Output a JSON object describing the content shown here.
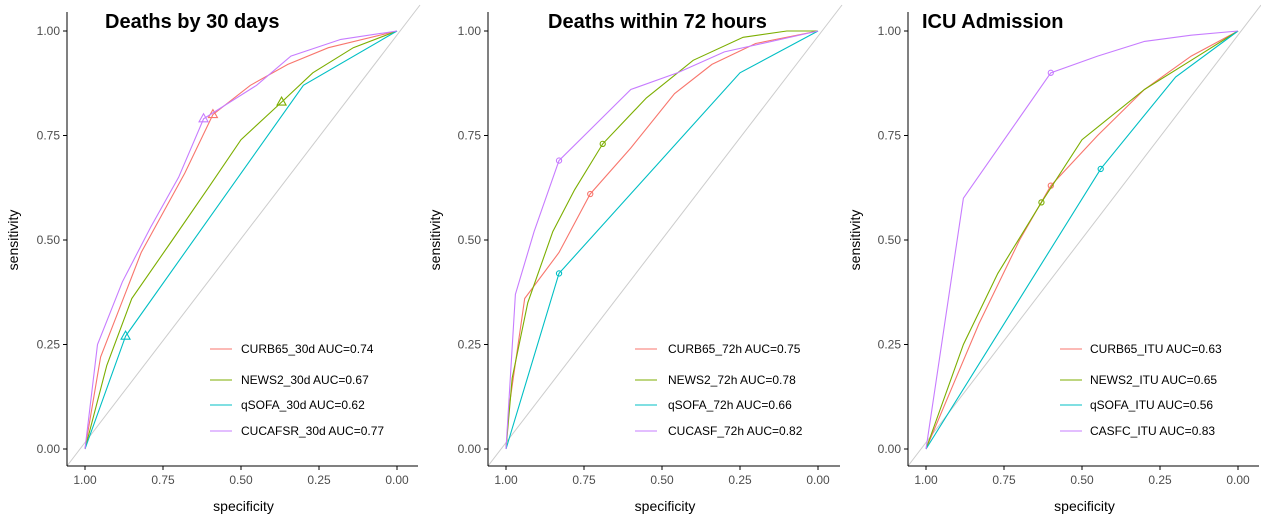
{
  "colors": {
    "CURB65": "#F8766D",
    "NEWS2": "#7CAE00",
    "qSOFA": "#00BFC4",
    "CUCA": "#C77CFF",
    "diagonal": "#cccccc",
    "axis": "#000000"
  },
  "chart_data": [
    {
      "type": "line",
      "title": "Deaths by 30 days",
      "xlabel": "specificity",
      "ylabel": "sensitivity",
      "xlim": [
        1.0,
        0.0
      ],
      "ylim": [
        0.0,
        1.0
      ],
      "x_reversed": true,
      "grid": false,
      "legend_position": "bottom-right",
      "xticks": [
        "1.00",
        "0.75",
        "0.50",
        "0.25",
        "0.00"
      ],
      "yticks": [
        "0.00",
        "0.25",
        "0.50",
        "0.75",
        "1.00"
      ],
      "series": [
        {
          "name": "CURB65_30d AUC=0.74",
          "color": "#F8766D",
          "marker": "triangle",
          "marker_point": [
            0.59,
            0.8
          ],
          "points": [
            [
              1.0,
              0.0
            ],
            [
              0.95,
              0.22
            ],
            [
              0.82,
              0.47
            ],
            [
              0.68,
              0.66
            ],
            [
              0.59,
              0.8
            ],
            [
              0.47,
              0.87
            ],
            [
              0.35,
              0.92
            ],
            [
              0.22,
              0.96
            ],
            [
              0.0,
              1.0
            ]
          ]
        },
        {
          "name": "NEWS2_30d AUC=0.67",
          "color": "#7CAE00",
          "marker": "triangle",
          "marker_point": [
            0.37,
            0.83
          ],
          "points": [
            [
              1.0,
              0.0
            ],
            [
              0.93,
              0.2
            ],
            [
              0.85,
              0.36
            ],
            [
              0.72,
              0.5
            ],
            [
              0.6,
              0.63
            ],
            [
              0.5,
              0.74
            ],
            [
              0.37,
              0.83
            ],
            [
              0.27,
              0.9
            ],
            [
              0.14,
              0.96
            ],
            [
              0.0,
              1.0
            ]
          ]
        },
        {
          "name": "qSOFA_30d AUC=0.62",
          "color": "#00BFC4",
          "marker": "triangle",
          "marker_point": [
            0.87,
            0.27
          ],
          "points": [
            [
              1.0,
              0.0
            ],
            [
              0.87,
              0.27
            ],
            [
              0.3,
              0.87
            ],
            [
              0.0,
              1.0
            ]
          ]
        },
        {
          "name": "CUCAFSR_30d AUC=0.77",
          "color": "#C77CFF",
          "marker": "triangle",
          "marker_point": [
            0.62,
            0.79
          ],
          "points": [
            [
              1.0,
              0.0
            ],
            [
              0.96,
              0.25
            ],
            [
              0.88,
              0.4
            ],
            [
              0.79,
              0.53
            ],
            [
              0.7,
              0.65
            ],
            [
              0.62,
              0.79
            ],
            [
              0.45,
              0.87
            ],
            [
              0.34,
              0.94
            ],
            [
              0.18,
              0.98
            ],
            [
              0.0,
              1.0
            ]
          ]
        }
      ]
    },
    {
      "type": "line",
      "title": "Deaths within 72 hours",
      "xlabel": "specificity",
      "ylabel": "sensitivity",
      "xlim": [
        1.0,
        0.0
      ],
      "ylim": [
        0.0,
        1.0
      ],
      "x_reversed": true,
      "grid": false,
      "legend_position": "bottom-right",
      "xticks": [
        "1.00",
        "0.75",
        "0.50",
        "0.25",
        "0.00"
      ],
      "yticks": [
        "0.00",
        "0.25",
        "0.50",
        "0.75",
        "1.00"
      ],
      "series": [
        {
          "name": "CURB65_72h AUC=0.75",
          "color": "#F8766D",
          "marker": "circle",
          "marker_point": [
            0.73,
            0.61
          ],
          "points": [
            [
              1.0,
              0.0
            ],
            [
              0.99,
              0.1
            ],
            [
              0.94,
              0.36
            ],
            [
              0.83,
              0.47
            ],
            [
              0.73,
              0.61
            ],
            [
              0.6,
              0.72
            ],
            [
              0.46,
              0.85
            ],
            [
              0.34,
              0.92
            ],
            [
              0.2,
              0.97
            ],
            [
              0.0,
              1.0
            ]
          ]
        },
        {
          "name": "NEWS2_72h AUC=0.78",
          "color": "#7CAE00",
          "marker": "circle",
          "marker_point": [
            0.69,
            0.73
          ],
          "points": [
            [
              1.0,
              0.0
            ],
            [
              0.98,
              0.17
            ],
            [
              0.93,
              0.35
            ],
            [
              0.85,
              0.52
            ],
            [
              0.78,
              0.62
            ],
            [
              0.69,
              0.73
            ],
            [
              0.55,
              0.84
            ],
            [
              0.4,
              0.93
            ],
            [
              0.24,
              0.985
            ],
            [
              0.1,
              1.0
            ],
            [
              0.0,
              1.0
            ]
          ]
        },
        {
          "name": "qSOFA_72h AUC=0.66",
          "color": "#00BFC4",
          "marker": "circle",
          "marker_point": [
            0.83,
            0.42
          ],
          "points": [
            [
              1.0,
              0.0
            ],
            [
              0.83,
              0.42
            ],
            [
              0.25,
              0.9
            ],
            [
              0.0,
              1.0
            ]
          ]
        },
        {
          "name": "CUCASF_72h AUC=0.82",
          "color": "#C77CFF",
          "marker": "circle",
          "marker_point": [
            0.83,
            0.69
          ],
          "points": [
            [
              1.0,
              0.0
            ],
            [
              0.97,
              0.37
            ],
            [
              0.91,
              0.52
            ],
            [
              0.83,
              0.69
            ],
            [
              0.6,
              0.86
            ],
            [
              0.45,
              0.9
            ],
            [
              0.3,
              0.95
            ],
            [
              0.0,
              1.0
            ]
          ]
        }
      ]
    },
    {
      "type": "line",
      "title": "ICU Admission",
      "xlabel": "specificity",
      "ylabel": "sensitivity",
      "xlim": [
        1.0,
        0.0
      ],
      "ylim": [
        0.0,
        1.0
      ],
      "x_reversed": true,
      "grid": false,
      "legend_position": "bottom-right",
      "xticks": [
        "1.00",
        "0.75",
        "0.50",
        "0.25",
        "0.00"
      ],
      "yticks": [
        "0.00",
        "0.25",
        "0.50",
        "0.75",
        "1.00"
      ],
      "series": [
        {
          "name": "CURB65_ITU AUC=0.63",
          "color": "#F8766D",
          "marker": "circle",
          "marker_point": [
            0.6,
            0.63
          ],
          "points": [
            [
              1.0,
              0.0
            ],
            [
              0.83,
              0.3
            ],
            [
              0.7,
              0.5
            ],
            [
              0.6,
              0.63
            ],
            [
              0.45,
              0.75
            ],
            [
              0.3,
              0.86
            ],
            [
              0.15,
              0.94
            ],
            [
              0.0,
              1.0
            ]
          ]
        },
        {
          "name": "NEWS2_ITU AUC=0.65",
          "color": "#7CAE00",
          "marker": "circle",
          "marker_point": [
            0.63,
            0.59
          ],
          "points": [
            [
              1.0,
              0.0
            ],
            [
              0.88,
              0.25
            ],
            [
              0.77,
              0.42
            ],
            [
              0.63,
              0.59
            ],
            [
              0.5,
              0.74
            ],
            [
              0.3,
              0.86
            ],
            [
              0.15,
              0.93
            ],
            [
              0.0,
              1.0
            ]
          ]
        },
        {
          "name": "qSOFA_ITU AUC=0.56",
          "color": "#00BFC4",
          "marker": "circle",
          "marker_point": [
            0.44,
            0.67
          ],
          "points": [
            [
              1.0,
              0.0
            ],
            [
              0.44,
              0.67
            ],
            [
              0.2,
              0.89
            ],
            [
              0.0,
              1.0
            ]
          ]
        },
        {
          "name": "CASFC_ITU AUC=0.83",
          "color": "#C77CFF",
          "marker": "circle",
          "marker_point": [
            0.6,
            0.9
          ],
          "points": [
            [
              1.0,
              0.0
            ],
            [
              0.88,
              0.6
            ],
            [
              0.6,
              0.9
            ],
            [
              0.45,
              0.94
            ],
            [
              0.3,
              0.975
            ],
            [
              0.15,
              0.99
            ],
            [
              0.0,
              1.0
            ]
          ]
        }
      ]
    }
  ]
}
